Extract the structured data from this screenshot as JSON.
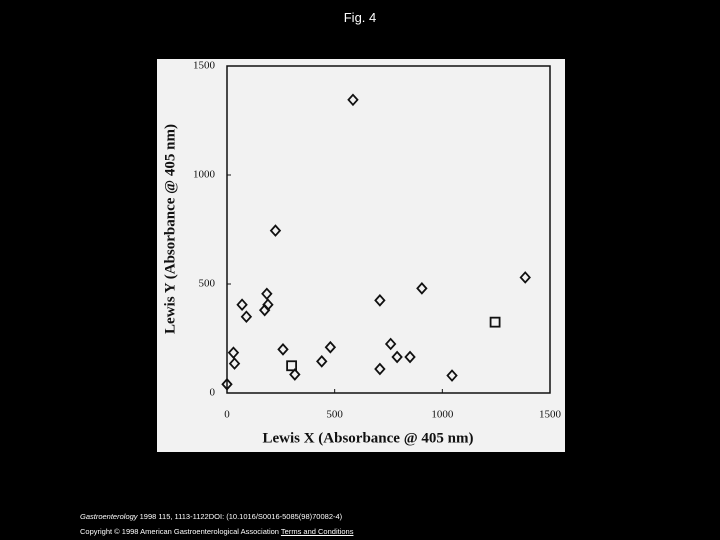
{
  "slide": {
    "title": "Fig. 4",
    "journal": "Gastroenterology",
    "citation": "1998 115, 1113-1122DOI: (10.1016/S0016-5085(98)70082-4)",
    "copyright": "Copyright © 1998 American Gastroenterological Association",
    "link": "Terms and Conditions"
  },
  "chart_data": {
    "type": "scatter",
    "x_label": "Lewis X (Absorbance @ 405 nm)",
    "y_label": "Lewis Y (Absorbance @ 405 nm)",
    "xlim": [
      0,
      1500
    ],
    "ylim": [
      0,
      1500
    ],
    "xticks": [
      0,
      500,
      1000,
      1500
    ],
    "yticks": [
      0,
      500,
      1000,
      1500
    ],
    "grid": false,
    "series": [
      {
        "color": "#111111",
        "marker": "diamond",
        "x": [
          0,
          30,
          35,
          70,
          90,
          185,
          190,
          175,
          225,
          260,
          315,
          440,
          480,
          585,
          710,
          710,
          760,
          790,
          850,
          905,
          1045,
          1385
        ],
        "values": [
          40,
          185,
          135,
          405,
          350,
          455,
          405,
          380,
          745,
          200,
          85,
          145,
          210,
          1345,
          425,
          110,
          225,
          165,
          165,
          480,
          80,
          530
        ]
      },
      {
        "color": "#111111",
        "marker": "square",
        "x": [
          300,
          1245
        ],
        "values": [
          125,
          325
        ]
      }
    ]
  }
}
